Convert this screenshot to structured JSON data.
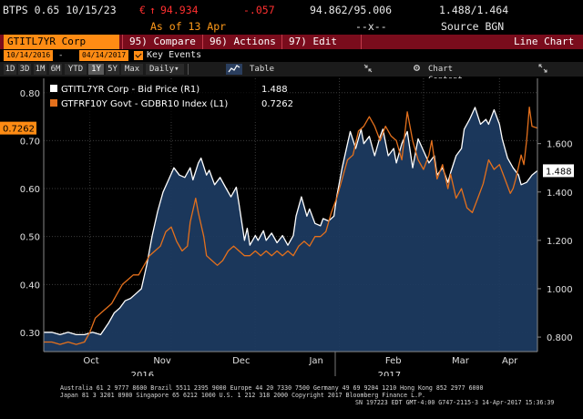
{
  "header": {
    "security": "BTPS 0.65 10/15/23",
    "price_prefix": "€",
    "price_arrow": "↑",
    "price": "94.934",
    "change": "-.057",
    "bid_ask": "94.862/95.006",
    "yield_pair": "1.488/1.464",
    "as_of": "As of 13 Apr",
    "ticker_arrows": "--x--",
    "source": "Source BGN"
  },
  "menu": {
    "ticker_field": "GTITL7YR Corp",
    "items": [
      {
        "num": "95)",
        "label": "Compare"
      },
      {
        "num": "96)",
        "label": "Actions"
      },
      {
        "num": "97)",
        "label": "Edit"
      }
    ],
    "view_label": "Line Chart"
  },
  "range": {
    "start_date": "10/14/2016",
    "end_date": "04/14/2017",
    "dash": "-",
    "key_events_label": "Key Events"
  },
  "toolbar": {
    "periods": [
      "1D",
      "3D",
      "1M",
      "6M",
      "YTD",
      "1Y",
      "5Y",
      "Max"
    ],
    "selected_period": "1Y",
    "frequency": "Daily",
    "frequency_arrow": "▾",
    "chart_icon": "line-chart-icon",
    "table_label": "Table",
    "collapse_icon": "collapse-arrows-icon",
    "chart_content_label": "Chart Content",
    "settings_icon": "gear-icon",
    "expand_icon": "expand-arrows-icon"
  },
  "colors": {
    "background": "#000000",
    "menu_bar": "#7a0c1c",
    "accent_orange": "#ff8c14",
    "price_red": "#ff3030",
    "area_fill": "#1c3a60",
    "white_line": "#ffffff",
    "orange_line": "#e4701c"
  },
  "chart_data": {
    "type": "line",
    "legend": [
      {
        "name": "GTITL7YR Corp - Bid Price (R1)",
        "value": "1.488",
        "color": "#ffffff"
      },
      {
        "name": "GTFRF10Y Govt - GDBR10 Index (L1)",
        "value": "0.7262",
        "color": "#e4701c"
      }
    ],
    "left_axis": {
      "ticks": [
        "0.80",
        "0.70",
        "0.60",
        "0.50",
        "0.40",
        "0.30"
      ],
      "range": [
        0.26,
        0.83
      ],
      "current_label": "0.7262"
    },
    "right_axis": {
      "ticks": [
        "1.600",
        "1.400",
        "1.200",
        "1.000",
        "0.800"
      ],
      "range": [
        0.74,
        1.87
      ],
      "current_label": "1.488"
    },
    "x_labels": [
      "Oct",
      "Nov",
      "Dec",
      "Jan",
      "Feb",
      "Mar",
      "Apr"
    ],
    "x_year_labels": [
      "2016",
      "2017"
    ],
    "x_range": [
      0,
      182
    ],
    "x_tick_days": [
      17,
      47,
      78,
      109,
      140,
      168,
      182
    ],
    "grid": true,
    "legend_position": "top-left",
    "series": [
      {
        "name": "GTITL7YR Corp - Bid Price (R1)",
        "axis": "right",
        "fill": true,
        "points": [
          [
            0,
            0.82
          ],
          [
            3,
            0.82
          ],
          [
            6,
            0.81
          ],
          [
            9,
            0.82
          ],
          [
            12,
            0.81
          ],
          [
            15,
            0.81
          ],
          [
            18,
            0.82
          ],
          [
            21,
            0.81
          ],
          [
            24,
            0.86
          ],
          [
            26,
            0.9
          ],
          [
            28,
            0.92
          ],
          [
            30,
            0.95
          ],
          [
            32,
            0.96
          ],
          [
            34,
            0.98
          ],
          [
            36,
            1.0
          ],
          [
            38,
            1.1
          ],
          [
            40,
            1.22
          ],
          [
            42,
            1.32
          ],
          [
            44,
            1.4
          ],
          [
            46,
            1.45
          ],
          [
            48,
            1.5
          ],
          [
            50,
            1.47
          ],
          [
            52,
            1.46
          ],
          [
            54,
            1.5
          ],
          [
            55,
            1.45
          ],
          [
            57,
            1.52
          ],
          [
            58,
            1.54
          ],
          [
            60,
            1.47
          ],
          [
            61,
            1.49
          ],
          [
            63,
            1.43
          ],
          [
            65,
            1.46
          ],
          [
            67,
            1.42
          ],
          [
            69,
            1.38
          ],
          [
            71,
            1.42
          ],
          [
            72,
            1.35
          ],
          [
            74,
            1.2
          ],
          [
            75,
            1.25
          ],
          [
            76,
            1.18
          ],
          [
            78,
            1.22
          ],
          [
            79,
            1.2
          ],
          [
            81,
            1.24
          ],
          [
            82,
            1.2
          ],
          [
            84,
            1.23
          ],
          [
            86,
            1.19
          ],
          [
            88,
            1.22
          ],
          [
            90,
            1.18
          ],
          [
            92,
            1.22
          ],
          [
            93,
            1.3
          ],
          [
            95,
            1.38
          ],
          [
            97,
            1.3
          ],
          [
            98,
            1.33
          ],
          [
            100,
            1.27
          ],
          [
            102,
            1.26
          ],
          [
            103,
            1.29
          ],
          [
            105,
            1.28
          ],
          [
            107,
            1.3
          ],
          [
            108,
            1.38
          ],
          [
            110,
            1.5
          ],
          [
            112,
            1.6
          ],
          [
            113,
            1.65
          ],
          [
            115,
            1.58
          ],
          [
            117,
            1.66
          ],
          [
            118,
            1.6
          ],
          [
            120,
            1.63
          ],
          [
            122,
            1.55
          ],
          [
            124,
            1.63
          ],
          [
            125,
            1.66
          ],
          [
            127,
            1.55
          ],
          [
            129,
            1.58
          ],
          [
            130,
            1.52
          ],
          [
            132,
            1.6
          ],
          [
            134,
            1.65
          ],
          [
            136,
            1.5
          ],
          [
            138,
            1.62
          ],
          [
            140,
            1.57
          ],
          [
            142,
            1.52
          ],
          [
            144,
            1.55
          ],
          [
            145,
            1.47
          ],
          [
            147,
            1.5
          ],
          [
            149,
            1.44
          ],
          [
            150,
            1.48
          ],
          [
            152,
            1.55
          ],
          [
            154,
            1.58
          ],
          [
            155,
            1.66
          ],
          [
            157,
            1.7
          ],
          [
            159,
            1.75
          ],
          [
            161,
            1.68
          ],
          [
            163,
            1.7
          ],
          [
            164,
            1.68
          ],
          [
            166,
            1.74
          ],
          [
            168,
            1.68
          ],
          [
            169,
            1.62
          ],
          [
            171,
            1.54
          ],
          [
            173,
            1.5
          ],
          [
            175,
            1.47
          ],
          [
            176,
            1.43
          ],
          [
            178,
            1.44
          ],
          [
            180,
            1.47
          ],
          [
            182,
            1.488
          ]
        ]
      },
      {
        "name": "GTFRF10Y Govt - GDBR10 Index (L1)",
        "axis": "left",
        "fill": false,
        "points": [
          [
            0,
            0.28
          ],
          [
            3,
            0.28
          ],
          [
            6,
            0.275
          ],
          [
            9,
            0.28
          ],
          [
            12,
            0.275
          ],
          [
            15,
            0.28
          ],
          [
            17,
            0.3
          ],
          [
            19,
            0.33
          ],
          [
            21,
            0.34
          ],
          [
            23,
            0.35
          ],
          [
            25,
            0.36
          ],
          [
            27,
            0.38
          ],
          [
            29,
            0.4
          ],
          [
            31,
            0.41
          ],
          [
            33,
            0.42
          ],
          [
            35,
            0.42
          ],
          [
            37,
            0.44
          ],
          [
            39,
            0.46
          ],
          [
            41,
            0.47
          ],
          [
            43,
            0.48
          ],
          [
            45,
            0.51
          ],
          [
            47,
            0.52
          ],
          [
            49,
            0.49
          ],
          [
            51,
            0.47
          ],
          [
            53,
            0.48
          ],
          [
            54,
            0.53
          ],
          [
            56,
            0.58
          ],
          [
            57,
            0.55
          ],
          [
            59,
            0.5
          ],
          [
            60,
            0.46
          ],
          [
            62,
            0.45
          ],
          [
            64,
            0.44
          ],
          [
            66,
            0.45
          ],
          [
            68,
            0.47
          ],
          [
            70,
            0.48
          ],
          [
            72,
            0.47
          ],
          [
            74,
            0.46
          ],
          [
            76,
            0.46
          ],
          [
            78,
            0.47
          ],
          [
            80,
            0.46
          ],
          [
            82,
            0.47
          ],
          [
            84,
            0.46
          ],
          [
            86,
            0.47
          ],
          [
            88,
            0.46
          ],
          [
            90,
            0.47
          ],
          [
            92,
            0.46
          ],
          [
            94,
            0.48
          ],
          [
            96,
            0.49
          ],
          [
            98,
            0.48
          ],
          [
            100,
            0.5
          ],
          [
            102,
            0.5
          ],
          [
            104,
            0.51
          ],
          [
            106,
            0.55
          ],
          [
            108,
            0.58
          ],
          [
            110,
            0.62
          ],
          [
            112,
            0.66
          ],
          [
            114,
            0.67
          ],
          [
            116,
            0.72
          ],
          [
            118,
            0.73
          ],
          [
            120,
            0.75
          ],
          [
            122,
            0.73
          ],
          [
            124,
            0.7
          ],
          [
            126,
            0.73
          ],
          [
            128,
            0.71
          ],
          [
            130,
            0.7
          ],
          [
            132,
            0.66
          ],
          [
            134,
            0.76
          ],
          [
            136,
            0.7
          ],
          [
            138,
            0.66
          ],
          [
            140,
            0.64
          ],
          [
            142,
            0.67
          ],
          [
            143,
            0.7
          ],
          [
            145,
            0.62
          ],
          [
            147,
            0.65
          ],
          [
            149,
            0.6
          ],
          [
            150,
            0.63
          ],
          [
            152,
            0.58
          ],
          [
            154,
            0.6
          ],
          [
            156,
            0.56
          ],
          [
            158,
            0.55
          ],
          [
            160,
            0.58
          ],
          [
            162,
            0.61
          ],
          [
            164,
            0.66
          ],
          [
            166,
            0.64
          ],
          [
            168,
            0.65
          ],
          [
            170,
            0.62
          ],
          [
            172,
            0.59
          ],
          [
            173,
            0.6
          ],
          [
            174,
            0.62
          ],
          [
            176,
            0.67
          ],
          [
            177,
            0.65
          ],
          [
            178,
            0.7
          ],
          [
            179,
            0.77
          ],
          [
            180,
            0.73
          ],
          [
            182,
            0.7262
          ]
        ]
      }
    ]
  },
  "footer": {
    "line1": "Australia 61 2 9777 8600 Brazil 5511 2395 9000 Europe 44 20 7330 7500 Germany 49 69 9204 1210 Hong Kong 852 2977 6000",
    "line2": "Japan 81 3 3201 8900          Singapore 65 6212 1000          U.S. 1 212 318 2000          Copyright 2017 Bloomberg Finance L.P.",
    "line3": "SN 197223 EDT  GMT-4:00 G747-2115-3 14-Apr-2017 15:36:39"
  }
}
